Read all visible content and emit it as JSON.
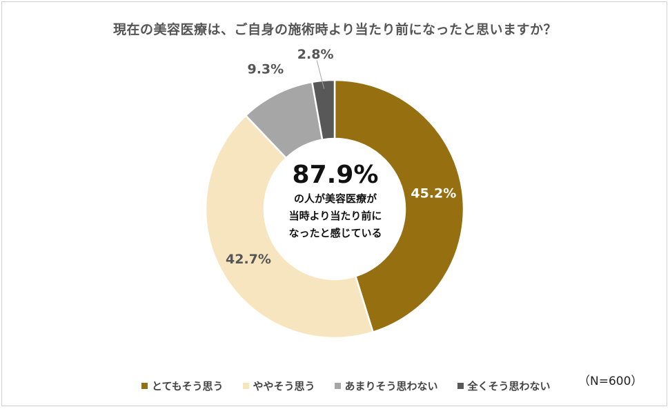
{
  "chart_data": {
    "type": "pie",
    "title": "現在の美容医療は、ご自身の施術時より当たり前になったと思いますか？",
    "categories": [
      "とてもそう思う",
      "ややそう思う",
      "あまりそう思わない",
      "全くそう思わない"
    ],
    "values": [
      45.2,
      42.7,
      9.3,
      2.8
    ],
    "value_labels": [
      "45.2%",
      "42.7%",
      "9.3%",
      "2.8%"
    ],
    "colors": [
      "#956f10",
      "#f7e5bf",
      "#a6a6a6",
      "#585858"
    ],
    "legend_position": "bottom",
    "center": {
      "value": "87.9%",
      "lines": [
        "の人が美容医療が",
        "当時より当たり前に",
        "なったと感じている"
      ]
    },
    "note": "（N=600）"
  }
}
